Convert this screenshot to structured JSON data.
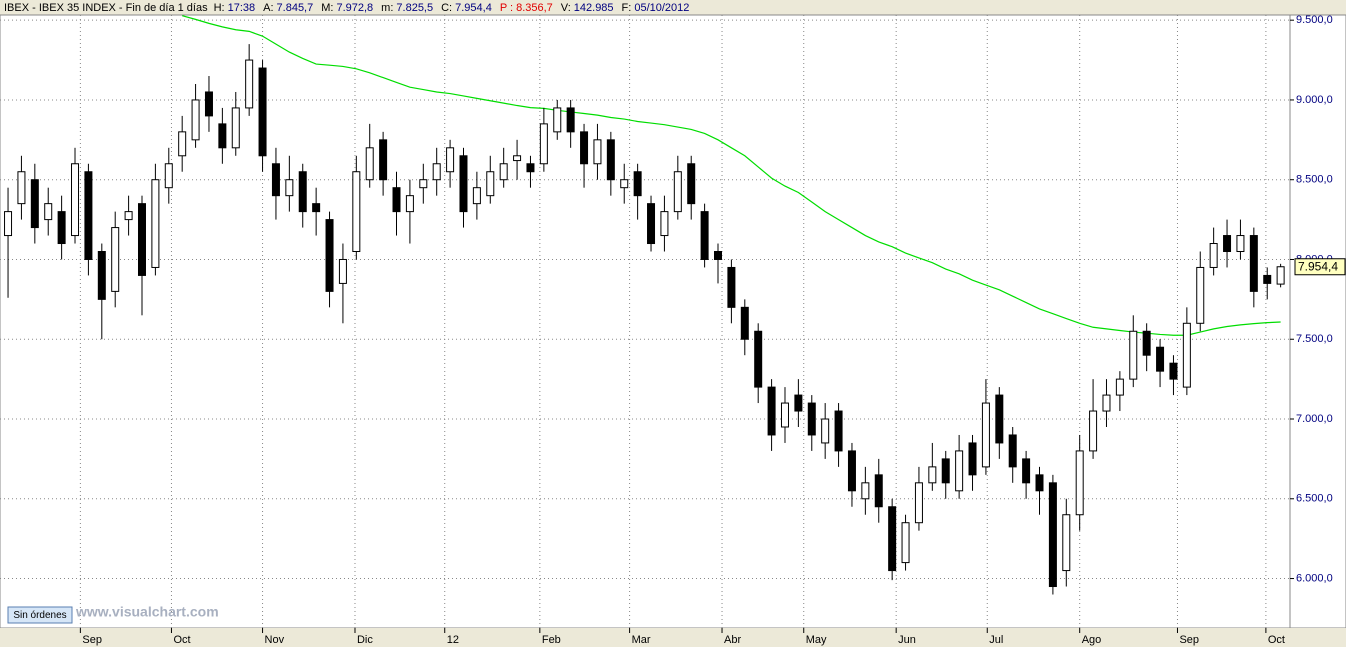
{
  "chart_data": {
    "type": "candlestick",
    "header": {
      "title": "IBEX - IBEX 35 INDEX - Fin de día 1 días",
      "fields": [
        {
          "label": "H:",
          "value": "17:38",
          "color": "#000080"
        },
        {
          "label": "A:",
          "value": "7.845,7",
          "color": "#000080"
        },
        {
          "label": "M:",
          "value": "7.972,8",
          "color": "#000080"
        },
        {
          "label": "m:",
          "value": "7.825,5",
          "color": "#000080"
        },
        {
          "label": "C:",
          "value": "7.954,4",
          "color": "#000080"
        },
        {
          "label": "P :",
          "value": "8.356,7",
          "color": "#e00000"
        },
        {
          "label": "V:",
          "value": "142.985",
          "color": "#000080"
        },
        {
          "label": "F:",
          "value": "05/10/2012",
          "color": "#000080"
        }
      ]
    },
    "button": "Sin órdenes",
    "watermark": "www.visualchart.com",
    "last_price_label": "7.954,4",
    "up_color": "#ffffff",
    "down_color": "#000000",
    "grid": true,
    "xlim": [
      -0.6,
      95.7
    ],
    "xticks": [
      {
        "value": 5.4,
        "label": "Sep"
      },
      {
        "value": 12.2,
        "label": "Oct"
      },
      {
        "value": 19,
        "label": "Nov"
      },
      {
        "value": 25.9,
        "label": "Dic"
      },
      {
        "value": 32.6,
        "label": "12"
      },
      {
        "value": 39.7,
        "label": "Feb"
      },
      {
        "value": 46.4,
        "label": "Mar"
      },
      {
        "value": 53.3,
        "label": "Abr"
      },
      {
        "value": 59.4,
        "label": "May"
      },
      {
        "value": 66.3,
        "label": "Jun"
      },
      {
        "value": 73.1,
        "label": "Jul"
      },
      {
        "value": 80,
        "label": "Ago"
      },
      {
        "value": 87.3,
        "label": "Sep"
      },
      {
        "value": 93.9,
        "label": "Oct"
      }
    ],
    "ylim": [
      5690,
      9545
    ],
    "yticks": [
      {
        "value": 6000,
        "label": "6.000,0"
      },
      {
        "value": 6500,
        "label": "6.500,0"
      },
      {
        "value": 7000,
        "label": "7.000,0"
      },
      {
        "value": 7500,
        "label": "7.500,0"
      },
      {
        "value": 8000,
        "label": "8.000,0"
      },
      {
        "value": 8500,
        "label": "8.500,0"
      },
      {
        "value": 9000,
        "label": "9.000,0"
      },
      {
        "value": 9500,
        "label": "9.500,0"
      }
    ],
    "candles": {
      "open": [
        8150,
        8350,
        8500,
        8250,
        8300,
        8150,
        8550,
        8050,
        7800,
        8250,
        8350,
        7950,
        8450,
        8650,
        8750,
        9050,
        8850,
        8700,
        8950,
        9200,
        8600,
        8400,
        8550,
        8350,
        8250,
        7850,
        8050,
        8500,
        8750,
        8450,
        8300,
        8450,
        8500,
        8550,
        8650,
        8350,
        8400,
        8500,
        8620,
        8600,
        8600,
        8800,
        8950,
        8800,
        8600,
        8750,
        8450,
        8550,
        8350,
        8150,
        8300,
        8600,
        8300,
        8050,
        7950,
        7700,
        7550,
        7200,
        6950,
        7150,
        7100,
        6850,
        7050,
        6800,
        6500,
        6650,
        6450,
        6100,
        6350,
        6600,
        6750,
        6550,
        6850,
        6700,
        7150,
        6900,
        6750,
        6650,
        6600,
        6050,
        6400,
        6800,
        7050,
        7150,
        7250,
        7550,
        7450,
        7350,
        7200,
        7600,
        7950,
        8150,
        8050,
        8150,
        7900,
        7845.7
      ],
      "high": [
        8450,
        8650,
        8600,
        8450,
        8400,
        8700,
        8600,
        8100,
        8300,
        8400,
        8400,
        8600,
        8700,
        8900,
        9100,
        9150,
        8950,
        9050,
        9350,
        9250,
        8700,
        8650,
        8600,
        8450,
        8300,
        8100,
        8650,
        8850,
        8800,
        8550,
        8500,
        8600,
        8700,
        8750,
        8700,
        8550,
        8650,
        8700,
        8750,
        8650,
        8950,
        9000,
        9000,
        8850,
        8850,
        8800,
        8600,
        8600,
        8400,
        8400,
        8650,
        8650,
        8350,
        8100,
        8000,
        7750,
        7600,
        7250,
        7200,
        7250,
        7150,
        7100,
        7100,
        6850,
        6700,
        6750,
        6500,
        6400,
        6700,
        6850,
        6800,
        6900,
        6900,
        7250,
        7200,
        6950,
        6800,
        6700,
        6650,
        6500,
        6900,
        7250,
        7250,
        7300,
        7650,
        7600,
        7500,
        7400,
        7700,
        8050,
        8200,
        8250,
        8250,
        8200,
        7950,
        7972.8
      ],
      "low": [
        7760,
        8250,
        8100,
        8150,
        8000,
        8100,
        7900,
        7500,
        7700,
        8150,
        7650,
        7900,
        8350,
        8550,
        8700,
        8800,
        8600,
        8650,
        8900,
        8550,
        8250,
        8300,
        8200,
        8150,
        7700,
        7600,
        8000,
        8450,
        8400,
        8150,
        8100,
        8350,
        8400,
        8450,
        8200,
        8250,
        8350,
        8450,
        8500,
        8450,
        8550,
        8750,
        8700,
        8450,
        8500,
        8400,
        8350,
        8250,
        8050,
        8050,
        8250,
        8250,
        7950,
        7850,
        7600,
        7400,
        7100,
        6800,
        6850,
        6950,
        6800,
        6750,
        6700,
        6450,
        6400,
        6350,
        5990,
        6050,
        6300,
        6550,
        6500,
        6500,
        6550,
        6650,
        6750,
        6600,
        6500,
        6400,
        5900,
        5950,
        6300,
        6750,
        6950,
        7050,
        7200,
        7300,
        7200,
        7150,
        7150,
        7550,
        7900,
        7950,
        8000,
        7700,
        7750,
        7825.5
      ],
      "close": [
        8300,
        8550,
        8200,
        8350,
        8100,
        8600,
        8000,
        7750,
        8200,
        8300,
        7900,
        8500,
        8600,
        8800,
        9000,
        8900,
        8700,
        8950,
        9250,
        8650,
        8400,
        8500,
        8300,
        8300,
        7800,
        8000,
        8550,
        8700,
        8500,
        8300,
        8400,
        8500,
        8600,
        8700,
        8300,
        8450,
        8550,
        8600,
        8650,
        8550,
        8850,
        8950,
        8800,
        8600,
        8750,
        8500,
        8500,
        8400,
        8100,
        8300,
        8550,
        8350,
        8000,
        8000,
        7700,
        7500,
        7200,
        6900,
        7100,
        7050,
        6900,
        7000,
        6800,
        6550,
        6600,
        6450,
        6050,
        6350,
        6600,
        6700,
        6600,
        6800,
        6650,
        7100,
        6850,
        6700,
        6600,
        6550,
        5950,
        6400,
        6800,
        7050,
        7150,
        7250,
        7550,
        7400,
        7300,
        7250,
        7600,
        7950,
        8100,
        8050,
        8150,
        7800,
        7850,
        7954.4
      ]
    },
    "moving_average": {
      "color": "#00dd00",
      "values": [
        null,
        null,
        null,
        null,
        null,
        null,
        null,
        null,
        null,
        null,
        null,
        null,
        null,
        9528,
        9505,
        9480,
        9458,
        9440,
        9430,
        9400,
        9350,
        9300,
        9260,
        9225,
        9218,
        9210,
        9195,
        9170,
        9140,
        9110,
        9080,
        9065,
        9050,
        9040,
        9025,
        9010,
        8995,
        8980,
        8965,
        8952,
        8947,
        8935,
        8925,
        8915,
        8905,
        8890,
        8880,
        8865,
        8855,
        8845,
        8830,
        8815,
        8790,
        8750,
        8700,
        8650,
        8580,
        8510,
        8460,
        8420,
        8360,
        8300,
        8250,
        8200,
        8150,
        8110,
        8080,
        8040,
        8010,
        7980,
        7940,
        7910,
        7870,
        7840,
        7810,
        7770,
        7730,
        7690,
        7660,
        7630,
        7600,
        7575,
        7565,
        7555,
        7545,
        7538,
        7530,
        7525,
        7525,
        7545,
        7565,
        7580,
        7590,
        7598,
        7604,
        7608
      ]
    }
  }
}
